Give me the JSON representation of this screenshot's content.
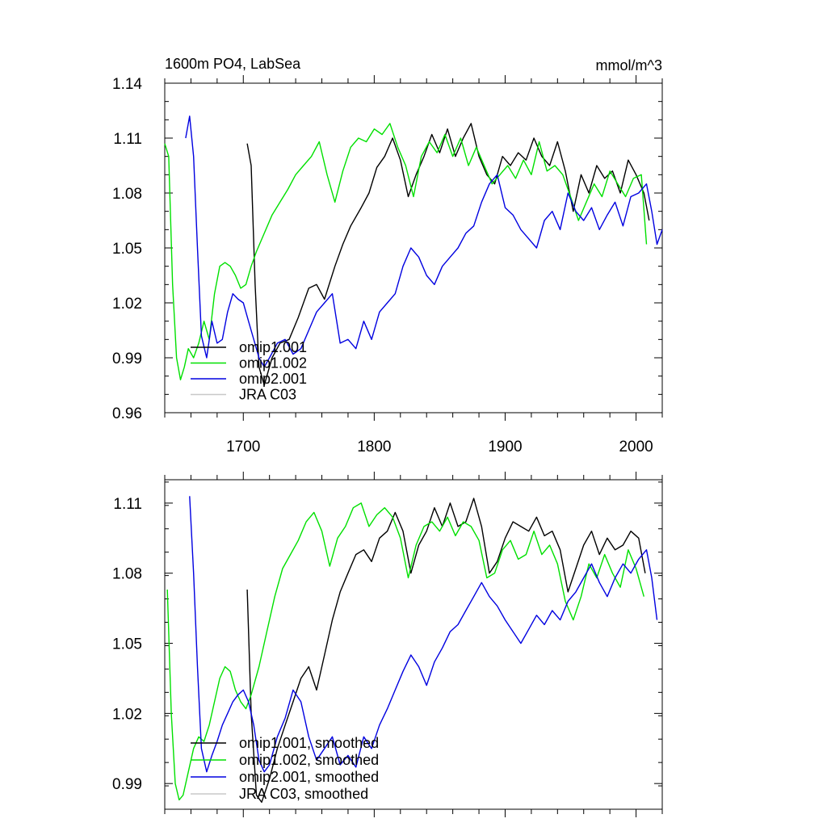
{
  "chart_data": [
    {
      "type": "line",
      "title": "1600m PO4, LabSea",
      "units": "mmol/m^3",
      "xlim": [
        1640,
        2020
      ],
      "ylim": [
        0.96,
        1.14
      ],
      "xticks": [
        1700,
        1800,
        1900,
        2000
      ],
      "xtick_labels": [
        "1700",
        "1800",
        "1900",
        "2000"
      ],
      "yticks": [
        0.96,
        0.99,
        1.02,
        1.05,
        1.08,
        1.11,
        1.14
      ],
      "ytick_labels": [
        "0.96",
        "0.99",
        "1.02",
        "1.05",
        "1.08",
        "1.11",
        "1.14"
      ],
      "legend": {
        "placement": "lower-left",
        "entries": [
          "omip1.001",
          "omip1.002",
          "omip2.001",
          "JRA C03"
        ]
      },
      "series": [
        {
          "name": "omip1.001",
          "color": "#000000",
          "x": [
            1703,
            1706,
            1709,
            1712,
            1716,
            1722,
            1728,
            1735,
            1742,
            1750,
            1756,
            1762,
            1770,
            1776,
            1782,
            1790,
            1796,
            1802,
            1808,
            1814,
            1820,
            1826,
            1832,
            1838,
            1844,
            1850,
            1856,
            1862,
            1868,
            1874,
            1880,
            1886,
            1892,
            1898,
            1904,
            1910,
            1916,
            1922,
            1928,
            1934,
            1940,
            1946,
            1952,
            1958,
            1964,
            1970,
            1976,
            1982,
            1988,
            1994,
            2000,
            2006,
            2010
          ],
          "values": [
            1.107,
            1.095,
            1.03,
            0.985,
            0.975,
            0.99,
            0.998,
            1.0,
            1.012,
            1.028,
            1.03,
            1.022,
            1.04,
            1.052,
            1.062,
            1.072,
            1.08,
            1.094,
            1.1,
            1.11,
            1.098,
            1.078,
            1.09,
            1.1,
            1.112,
            1.102,
            1.115,
            1.1,
            1.11,
            1.118,
            1.1,
            1.09,
            1.085,
            1.1,
            1.095,
            1.102,
            1.098,
            1.11,
            1.1,
            1.095,
            1.108,
            1.092,
            1.07,
            1.09,
            1.08,
            1.095,
            1.088,
            1.092,
            1.08,
            1.098,
            1.09,
            1.08,
            1.065
          ]
        },
        {
          "name": "omip1.002",
          "color": "#00e000",
          "x": [
            1640,
            1643,
            1646,
            1649,
            1652,
            1655,
            1658,
            1662,
            1666,
            1670,
            1674,
            1678,
            1682,
            1686,
            1690,
            1694,
            1698,
            1702,
            1706,
            1710,
            1716,
            1722,
            1728,
            1734,
            1740,
            1746,
            1752,
            1758,
            1764,
            1770,
            1776,
            1782,
            1788,
            1794,
            1800,
            1806,
            1812,
            1818,
            1824,
            1830,
            1836,
            1842,
            1848,
            1854,
            1860,
            1866,
            1872,
            1878,
            1884,
            1890,
            1896,
            1902,
            1908,
            1914,
            1920,
            1926,
            1932,
            1938,
            1944,
            1950,
            1956,
            1962,
            1968,
            1974,
            1980,
            1986,
            1992,
            1998,
            2004,
            2008
          ],
          "values": [
            1.107,
            1.1,
            1.03,
            0.99,
            0.978,
            0.985,
            0.995,
            0.99,
            0.998,
            1.01,
            1.0,
            1.025,
            1.04,
            1.042,
            1.04,
            1.035,
            1.028,
            1.03,
            1.04,
            1.048,
            1.058,
            1.068,
            1.075,
            1.082,
            1.09,
            1.095,
            1.1,
            1.108,
            1.09,
            1.075,
            1.092,
            1.105,
            1.11,
            1.108,
            1.115,
            1.112,
            1.118,
            1.105,
            1.095,
            1.078,
            1.1,
            1.108,
            1.102,
            1.112,
            1.1,
            1.11,
            1.095,
            1.105,
            1.095,
            1.085,
            1.09,
            1.095,
            1.088,
            1.098,
            1.09,
            1.108,
            1.092,
            1.095,
            1.09,
            1.078,
            1.065,
            1.075,
            1.085,
            1.078,
            1.092,
            1.085,
            1.078,
            1.088,
            1.09,
            1.052
          ]
        },
        {
          "name": "omip2.001",
          "color": "#0000e0",
          "x": [
            1656,
            1659,
            1662,
            1665,
            1668,
            1672,
            1676,
            1680,
            1684,
            1688,
            1692,
            1696,
            1700,
            1704,
            1708,
            1712,
            1716,
            1720,
            1726,
            1732,
            1738,
            1744,
            1750,
            1756,
            1762,
            1768,
            1774,
            1780,
            1786,
            1792,
            1798,
            1804,
            1810,
            1816,
            1822,
            1828,
            1834,
            1840,
            1846,
            1852,
            1858,
            1864,
            1870,
            1876,
            1882,
            1888,
            1894,
            1900,
            1906,
            1912,
            1918,
            1924,
            1930,
            1936,
            1942,
            1948,
            1954,
            1960,
            1966,
            1972,
            1978,
            1984,
            1990,
            1996,
            2002,
            2008,
            2012,
            2016,
            2020
          ],
          "values": [
            1.11,
            1.122,
            1.1,
            1.05,
            1.002,
            0.99,
            1.01,
            0.998,
            1.0,
            1.015,
            1.025,
            1.022,
            1.02,
            1.01,
            1.0,
            0.99,
            0.985,
            0.99,
            0.998,
            1.0,
            0.992,
            0.995,
            1.005,
            1.015,
            1.02,
            1.025,
            0.998,
            1.0,
            0.995,
            1.01,
            1.0,
            1.015,
            1.02,
            1.025,
            1.04,
            1.05,
            1.045,
            1.035,
            1.03,
            1.04,
            1.045,
            1.05,
            1.058,
            1.062,
            1.075,
            1.085,
            1.09,
            1.072,
            1.068,
            1.06,
            1.055,
            1.05,
            1.065,
            1.07,
            1.06,
            1.08,
            1.07,
            1.065,
            1.072,
            1.06,
            1.068,
            1.075,
            1.062,
            1.078,
            1.08,
            1.085,
            1.07,
            1.052,
            1.06
          ]
        },
        {
          "name": "JRA C03",
          "color": "#c8c8c8",
          "x": [],
          "values": []
        }
      ]
    },
    {
      "type": "line",
      "title": "",
      "xlim": [
        1640,
        2020
      ],
      "ylim": [
        0.979,
        1.12
      ],
      "yticks": [
        0.99,
        1.02,
        1.05,
        1.08,
        1.11
      ],
      "ytick_labels": [
        "0.99",
        "1.02",
        "1.05",
        "1.08",
        "1.11"
      ],
      "legend": {
        "placement": "lower-left",
        "entries": [
          "omip1.001, smoothed",
          "omip1.002, smoothed",
          "omip2.001, smoothed",
          "JRA C03, smoothed"
        ]
      },
      "series": [
        {
          "name": "omip1.001, smoothed",
          "color": "#000000",
          "x": [
            1703,
            1706,
            1710,
            1714,
            1720,
            1726,
            1732,
            1738,
            1744,
            1750,
            1756,
            1762,
            1768,
            1774,
            1780,
            1786,
            1792,
            1798,
            1804,
            1810,
            1816,
            1822,
            1828,
            1834,
            1840,
            1846,
            1852,
            1858,
            1864,
            1870,
            1876,
            1882,
            1888,
            1894,
            1900,
            1906,
            1912,
            1918,
            1924,
            1930,
            1936,
            1942,
            1948,
            1954,
            1960,
            1966,
            1972,
            1978,
            1984,
            1990,
            1996,
            2002,
            2007
          ],
          "values": [
            1.073,
            1.02,
            0.985,
            0.982,
            0.992,
            1.005,
            1.015,
            1.025,
            1.035,
            1.04,
            1.03,
            1.045,
            1.06,
            1.072,
            1.08,
            1.088,
            1.09,
            1.085,
            1.095,
            1.098,
            1.106,
            1.098,
            1.08,
            1.092,
            1.098,
            1.108,
            1.1,
            1.11,
            1.1,
            1.102,
            1.112,
            1.1,
            1.08,
            1.085,
            1.095,
            1.102,
            1.1,
            1.098,
            1.104,
            1.096,
            1.098,
            1.09,
            1.072,
            1.082,
            1.092,
            1.098,
            1.088,
            1.095,
            1.09,
            1.092,
            1.098,
            1.095,
            1.08
          ]
        },
        {
          "name": "omip1.002, smoothed",
          "color": "#00e000",
          "x": [
            1642,
            1645,
            1648,
            1651,
            1654,
            1658,
            1662,
            1666,
            1670,
            1674,
            1678,
            1682,
            1686,
            1690,
            1694,
            1698,
            1702,
            1706,
            1712,
            1718,
            1724,
            1730,
            1736,
            1742,
            1748,
            1754,
            1760,
            1766,
            1772,
            1778,
            1784,
            1790,
            1796,
            1802,
            1808,
            1814,
            1820,
            1826,
            1832,
            1838,
            1844,
            1850,
            1856,
            1862,
            1868,
            1874,
            1880,
            1886,
            1892,
            1898,
            1904,
            1910,
            1916,
            1922,
            1928,
            1934,
            1940,
            1946,
            1952,
            1958,
            1964,
            1970,
            1976,
            1982,
            1988,
            1994,
            2000,
            2006
          ],
          "values": [
            1.073,
            1.02,
            0.99,
            0.983,
            0.985,
            0.995,
            1.005,
            1.01,
            1.008,
            1.015,
            1.025,
            1.035,
            1.04,
            1.038,
            1.03,
            1.025,
            1.022,
            1.028,
            1.04,
            1.055,
            1.07,
            1.082,
            1.088,
            1.094,
            1.102,
            1.106,
            1.098,
            1.083,
            1.095,
            1.1,
            1.108,
            1.11,
            1.1,
            1.105,
            1.108,
            1.104,
            1.095,
            1.078,
            1.092,
            1.1,
            1.102,
            1.098,
            1.104,
            1.096,
            1.102,
            1.1,
            1.094,
            1.078,
            1.08,
            1.09,
            1.094,
            1.086,
            1.088,
            1.098,
            1.088,
            1.092,
            1.084,
            1.068,
            1.06,
            1.07,
            1.084,
            1.078,
            1.088,
            1.08,
            1.074,
            1.09,
            1.082,
            1.07
          ]
        },
        {
          "name": "omip2.001, smoothed",
          "color": "#0000e0",
          "x": [
            1659,
            1662,
            1665,
            1668,
            1672,
            1676,
            1680,
            1684,
            1688,
            1692,
            1696,
            1700,
            1704,
            1708,
            1712,
            1716,
            1720,
            1726,
            1732,
            1738,
            1744,
            1750,
            1756,
            1762,
            1768,
            1774,
            1780,
            1786,
            1792,
            1798,
            1804,
            1810,
            1816,
            1822,
            1828,
            1834,
            1840,
            1846,
            1852,
            1858,
            1864,
            1870,
            1876,
            1882,
            1888,
            1894,
            1900,
            1906,
            1912,
            1918,
            1924,
            1930,
            1936,
            1942,
            1948,
            1954,
            1960,
            1966,
            1972,
            1978,
            1984,
            1990,
            1996,
            2002,
            2008,
            2012,
            2016
          ],
          "values": [
            1.113,
            1.08,
            1.04,
            1.005,
            0.995,
            1.002,
            1.008,
            1.015,
            1.02,
            1.025,
            1.028,
            1.03,
            1.025,
            1.015,
            1.0,
            0.995,
            0.998,
            1.01,
            1.018,
            1.03,
            1.025,
            1.01,
            1.0,
            1.005,
            1.01,
            0.998,
            1.002,
            0.997,
            1.01,
            1.005,
            1.015,
            1.022,
            1.03,
            1.038,
            1.045,
            1.04,
            1.032,
            1.042,
            1.048,
            1.055,
            1.058,
            1.064,
            1.07,
            1.076,
            1.07,
            1.066,
            1.06,
            1.055,
            1.05,
            1.056,
            1.062,
            1.058,
            1.064,
            1.06,
            1.068,
            1.072,
            1.078,
            1.084,
            1.076,
            1.07,
            1.078,
            1.084,
            1.08,
            1.086,
            1.09,
            1.078,
            1.06
          ]
        },
        {
          "name": "JRA C03, smoothed",
          "color": "#c8c8c8",
          "x": [],
          "values": []
        }
      ]
    }
  ]
}
